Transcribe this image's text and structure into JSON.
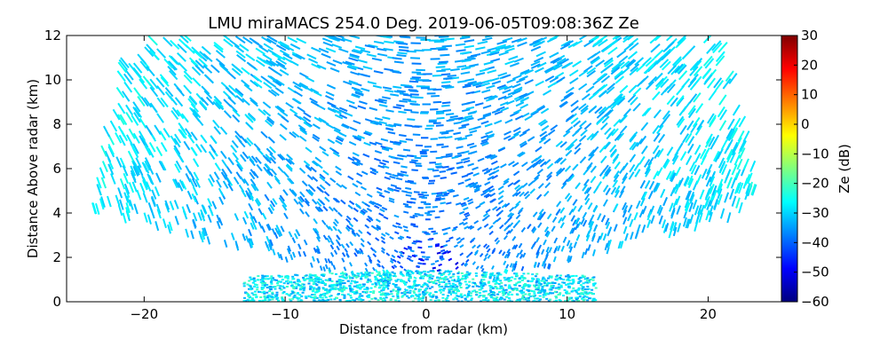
{
  "chart_data": {
    "type": "heatmap",
    "title": "LMU miraMACS 254.0 Deg. 2019-06-05T09:08:36Z  Ze",
    "xlabel": "Distance from radar (km)",
    "ylabel": "Distance Above radar  (km)",
    "xlim": [
      -25.5,
      25.2
    ],
    "ylim": [
      0,
      12
    ],
    "x_ticks": [
      -20,
      -10,
      0,
      10,
      20
    ],
    "x_tick_labels": [
      "−20",
      "−10",
      "0",
      "10",
      "20"
    ],
    "y_ticks": [
      0,
      2,
      4,
      6,
      8,
      10,
      12
    ],
    "y_tick_labels": [
      "0",
      "2",
      "4",
      "6",
      "8",
      "10",
      "12"
    ],
    "scan": {
      "azimuth_deg": 254.0,
      "max_range_km": 24,
      "elevation_min_deg": 10,
      "elevation_max_deg": 170
    },
    "field_description": "RHI scan of reflectivity; speckled noise-level echoes between about -45 and -25 dB, enhanced near the surface below 1.5 km",
    "colorbar": {
      "label": "Ze (dB)",
      "min": -60,
      "max": 30,
      "ticks": [
        30,
        20,
        10,
        0,
        -10,
        -20,
        -30,
        -40,
        -50,
        -60
      ],
      "tick_labels": [
        "30",
        "20",
        "10",
        "0",
        "−10",
        "−20",
        "−30",
        "−40",
        "−50",
        "−60"
      ],
      "colormap": "jet",
      "colors": [
        "#00007f",
        "#0000ff",
        "#007fff",
        "#00ffff",
        "#7fff7f",
        "#ffff00",
        "#ff7f00",
        "#ff0000",
        "#7f0000"
      ]
    }
  }
}
